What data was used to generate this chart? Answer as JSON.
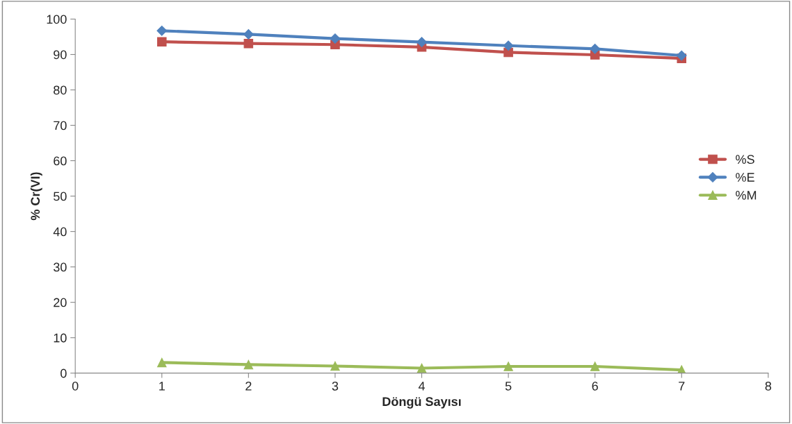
{
  "chart_data": {
    "type": "line",
    "xlabel": "Döngü Sayısı",
    "ylabel": "% Cr(VI)",
    "x": [
      1,
      2,
      3,
      4,
      5,
      6,
      7
    ],
    "series": [
      {
        "name": "%S",
        "color": "#c0504d",
        "marker": "square",
        "values": [
          93.6,
          93.1,
          92.8,
          92.1,
          90.6,
          89.9,
          88.9
        ]
      },
      {
        "name": "%E",
        "color": "#4f81bd",
        "marker": "diamond",
        "values": [
          96.7,
          95.7,
          94.5,
          93.5,
          92.5,
          91.6,
          89.7
        ]
      },
      {
        "name": "%M",
        "color": "#9bbb59",
        "marker": "triangle",
        "values": [
          3.0,
          2.4,
          2.0,
          1.4,
          1.9,
          1.9,
          0.9
        ]
      }
    ],
    "xlim": [
      0,
      8
    ],
    "xticks": [
      0,
      1,
      2,
      3,
      4,
      5,
      6,
      7,
      8
    ],
    "ylim": [
      0,
      100
    ],
    "yticks": [
      0,
      10,
      20,
      30,
      40,
      50,
      60,
      70,
      80,
      90,
      100
    ],
    "grid": false,
    "legend": "right"
  }
}
